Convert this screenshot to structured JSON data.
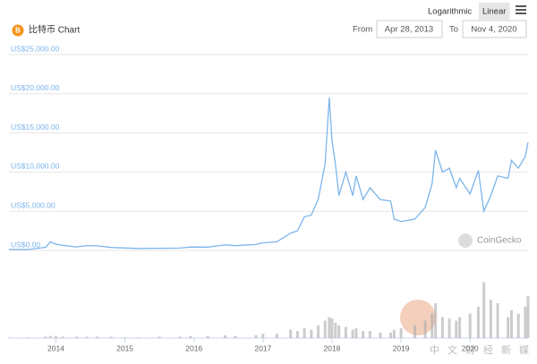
{
  "chart_data": {
    "type": "line",
    "title": "比特币 Chart",
    "scale_options": [
      "Logarithmic",
      "Linear"
    ],
    "selected_scale": "Linear",
    "range": {
      "from_label": "From",
      "from": "Apr 28, 2013",
      "to_label": "To",
      "to": "Nov 4, 2020"
    },
    "watermark": "CoinGecko",
    "watermark2": "中文财经新媒体",
    "x": [
      2013.32,
      2013.6,
      2013.85,
      2013.92,
      2014.0,
      2014.1,
      2014.3,
      2014.45,
      2014.6,
      2014.8,
      2015.0,
      2015.2,
      2015.5,
      2015.8,
      2015.95,
      2016.2,
      2016.45,
      2016.6,
      2016.9,
      2017.0,
      2017.2,
      2017.4,
      2017.5,
      2017.6,
      2017.7,
      2017.8,
      2017.9,
      2017.96,
      2018.0,
      2018.05,
      2018.1,
      2018.2,
      2018.3,
      2018.35,
      2018.45,
      2018.55,
      2018.7,
      2018.85,
      2018.9,
      2019.0,
      2019.2,
      2019.35,
      2019.45,
      2019.5,
      2019.6,
      2019.7,
      2019.8,
      2019.85,
      2020.0,
      2020.12,
      2020.2,
      2020.3,
      2020.4,
      2020.55,
      2020.6,
      2020.7,
      2020.8,
      2020.84
    ],
    "series": [
      {
        "color": "#7cb5ec",
        "values": [
          130,
          110,
          400,
          1100,
          800,
          650,
          450,
          620,
          580,
          380,
          310,
          250,
          270,
          300,
          430,
          420,
          700,
          600,
          750,
          970,
          1100,
          2200,
          2500,
          4300,
          4500,
          6500,
          11000,
          19500,
          14000,
          11000,
          7000,
          10000,
          7000,
          9500,
          6500,
          8000,
          6500,
          6300,
          4000,
          3700,
          4000,
          5500,
          8500,
          12800,
          10000,
          10500,
          8000,
          9200,
          7200,
          10200,
          5000,
          7000,
          9500,
          9200,
          11500,
          10500,
          12000,
          13800
        ]
      },
      {
        "color": "#aaaaaa",
        "axis": "y2",
        "values": [
          1,
          1,
          2,
          3,
          3,
          2,
          2,
          2,
          2,
          2,
          1,
          1,
          2,
          2,
          3,
          3,
          4,
          3,
          4,
          6,
          6,
          12,
          10,
          14,
          12,
          18,
          25,
          30,
          28,
          22,
          18,
          16,
          12,
          14,
          10,
          10,
          8,
          8,
          12,
          14,
          18,
          25,
          35,
          50,
          30,
          28,
          25,
          30,
          35,
          45,
          80,
          55,
          50,
          30,
          40,
          35,
          45,
          60
        ]
      }
    ],
    "xlim": [
      2013.32,
      2020.84
    ],
    "xticks": [
      2014,
      2015,
      2016,
      2017,
      2018,
      2019,
      2020
    ],
    "ylim": [
      0,
      25000
    ],
    "yticks": [
      {
        "value": 0,
        "label": "US$0.00"
      },
      {
        "value": 5000,
        "label": "US$5,000.00"
      },
      {
        "value": 10000,
        "label": "US$10,000.00"
      },
      {
        "value": 15000,
        "label": "US$15,000.00"
      },
      {
        "value": 20000,
        "label": "US$20,000.00"
      },
      {
        "value": 25000,
        "label": "US$25,000.00"
      }
    ],
    "y2lim": [
      0,
      100
    ],
    "grid": true
  }
}
